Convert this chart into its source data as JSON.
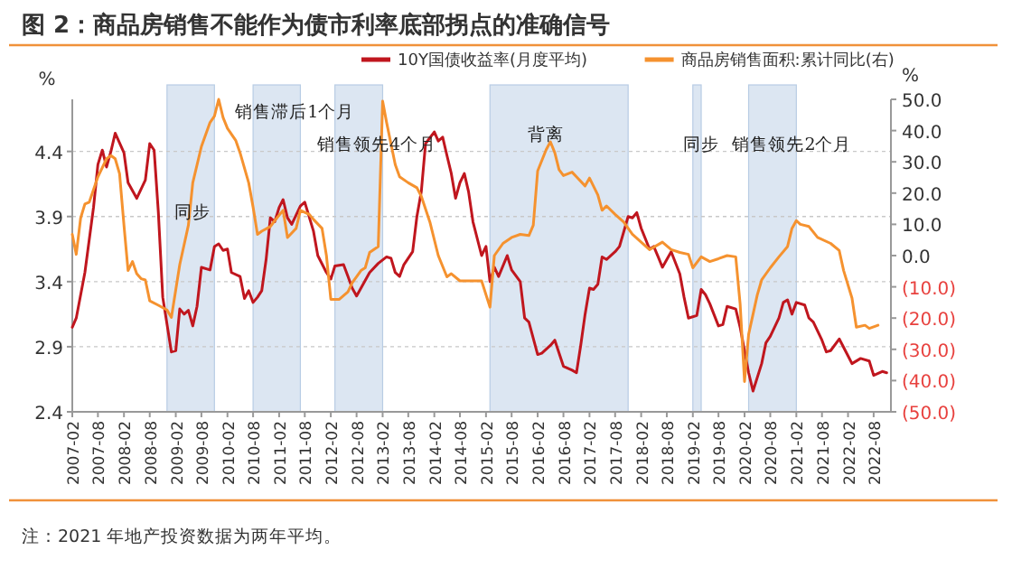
{
  "chart_data": {
    "type": "line",
    "title": "图 2：商品房销售不能作为债市利率底部拐点的准确信号",
    "ylabel": "%",
    "y2label": "%",
    "xlim": [
      "2007-02",
      "2022-12"
    ],
    "xticks": [
      "2007-02",
      "2007-08",
      "2008-02",
      "2008-08",
      "2009-02",
      "2009-08",
      "2010-02",
      "2010-08",
      "2011-02",
      "2011-08",
      "2012-02",
      "2012-08",
      "2013-02",
      "2013-08",
      "2014-02",
      "2014-08",
      "2015-02",
      "2015-08",
      "2016-02",
      "2016-08",
      "2017-02",
      "2017-08",
      "2018-02",
      "2018-08",
      "2019-02",
      "2019-08",
      "2020-02",
      "2020-08",
      "2021-02",
      "2021-08",
      "2022-02",
      "2022-08"
    ],
    "ylim": [
      2.4,
      4.8
    ],
    "yticks": [
      2.4,
      2.9,
      3.4,
      3.9,
      4.4
    ],
    "y2lim": [
      -50,
      50
    ],
    "y2ticks": [
      {
        "value": 50,
        "label": "50.0"
      },
      {
        "value": 40,
        "label": "40.0"
      },
      {
        "value": 30,
        "label": "30.0"
      },
      {
        "value": 20,
        "label": "20.0"
      },
      {
        "value": 10,
        "label": "10.0"
      },
      {
        "value": 0,
        "label": "0.0"
      },
      {
        "value": -10,
        "label": "(10.0)"
      },
      {
        "value": -20,
        "label": "(20.0)"
      },
      {
        "value": -30,
        "label": "(30.0)"
      },
      {
        "value": -40,
        "label": "(40.0)"
      },
      {
        "value": -50,
        "label": "(50.0)"
      }
    ],
    "grid": "y",
    "legend": "top",
    "marker": "none",
    "line_style": "solid",
    "bands": [
      {
        "axis": "x",
        "from": "2008-12",
        "to": "2009-11",
        "color": "#dce6f2"
      },
      {
        "axis": "x",
        "from": "2010-08",
        "to": "2011-07",
        "color": "#dce6f2",
        "label": "销售滞后1个月"
      },
      {
        "axis": "x",
        "from": "2012-03",
        "to": "2013-02",
        "color": "#dce6f2",
        "label": "销售领先4个月"
      },
      {
        "axis": "x",
        "from": "2015-03",
        "to": "2017-11",
        "color": "#dce6f2"
      },
      {
        "axis": "x",
        "from": "2019-02",
        "to": "2019-04",
        "color": "#dce6f2"
      },
      {
        "axis": "x",
        "from": "2020-03",
        "to": "2021-02",
        "color": "#dce6f2"
      }
    ],
    "annotations": [
      {
        "text": "同步",
        "x": "2009-06",
        "y": 3.95
      },
      {
        "text": "背离",
        "x": "2016-04",
        "y": 4.54
      },
      {
        "text": "同步",
        "x": "2019-04",
        "y": 4.47
      },
      {
        "text": "销售领先2个月",
        "x": "2021-01",
        "y": 4.47
      },
      "注：2021 年地产投资数据为两年平均。"
    ],
    "series": [
      {
        "name": "10Y国债收益率(月度平均)",
        "color": "#c0161e",
        "axis": "y",
        "x": [
          "2007-02",
          "2007-03",
          "2007-05",
          "2007-07",
          "2007-08",
          "2007-09",
          "2007-10",
          "2007-11",
          "2007-12",
          "2008-02",
          "2008-03",
          "2008-05",
          "2008-07",
          "2008-08",
          "2008-09",
          "2008-10",
          "2008-11",
          "2009-01",
          "2009-02",
          "2009-03",
          "2009-04",
          "2009-05",
          "2009-06",
          "2009-07",
          "2009-08",
          "2009-10",
          "2009-11",
          "2009-12",
          "2010-01",
          "2010-02",
          "2010-03",
          "2010-05",
          "2010-06",
          "2010-07",
          "2010-08",
          "2010-09",
          "2010-10",
          "2010-11",
          "2010-12",
          "2011-01",
          "2011-02",
          "2011-03",
          "2011-04",
          "2011-05",
          "2011-07",
          "2011-08",
          "2011-10",
          "2011-11",
          "2012-01",
          "2012-02",
          "2012-03",
          "2012-05",
          "2012-06",
          "2012-07",
          "2012-08",
          "2012-09",
          "2012-11",
          "2013-01",
          "2013-03",
          "2013-04",
          "2013-05",
          "2013-06",
          "2013-07",
          "2013-09",
          "2013-10",
          "2013-11",
          "2013-12",
          "2014-02",
          "2014-03",
          "2014-04",
          "2014-05",
          "2014-06",
          "2014-07",
          "2014-08",
          "2014-09",
          "2014-10",
          "2014-11",
          "2015-01",
          "2015-02",
          "2015-03",
          "2015-04",
          "2015-05",
          "2015-07",
          "2015-08",
          "2015-10",
          "2015-11",
          "2015-12",
          "2016-02",
          "2016-03",
          "2016-05",
          "2016-06",
          "2016-08",
          "2016-10",
          "2016-11",
          "2016-12",
          "2017-01",
          "2017-02",
          "2017-03",
          "2017-04",
          "2017-05",
          "2017-06",
          "2017-08",
          "2017-09",
          "2017-11",
          "2017-12",
          "2018-01",
          "2018-02",
          "2018-04",
          "2018-05",
          "2018-06",
          "2018-07",
          "2018-09",
          "2018-11",
          "2018-12",
          "2019-01",
          "2019-03",
          "2019-04",
          "2019-05",
          "2019-06",
          "2019-08",
          "2019-09",
          "2019-10",
          "2019-12",
          "2020-01",
          "2020-03",
          "2020-04",
          "2020-06",
          "2020-07",
          "2020-08",
          "2020-10",
          "2020-11",
          "2020-12",
          "2021-01",
          "2021-02",
          "2021-04",
          "2021-05",
          "2021-06",
          "2021-08",
          "2021-09",
          "2021-10",
          "2021-12",
          "2022-02",
          "2022-03",
          "2022-05",
          "2022-07",
          "2022-08",
          "2022-10",
          "2022-11"
        ],
        "values": [
          3.05,
          3.12,
          3.47,
          3.97,
          4.3,
          4.41,
          4.28,
          4.4,
          4.54,
          4.39,
          4.16,
          4.04,
          4.18,
          4.46,
          4.41,
          3.93,
          3.28,
          2.86,
          2.87,
          3.19,
          3.15,
          3.18,
          3.06,
          3.21,
          3.51,
          3.49,
          3.67,
          3.69,
          3.64,
          3.65,
          3.47,
          3.44,
          3.27,
          3.33,
          3.24,
          3.28,
          3.33,
          3.57,
          3.89,
          3.86,
          3.97,
          4.03,
          3.89,
          3.84,
          3.98,
          4.01,
          3.79,
          3.6,
          3.47,
          3.42,
          3.52,
          3.53,
          3.44,
          3.35,
          3.29,
          3.35,
          3.47,
          3.54,
          3.59,
          3.58,
          3.47,
          3.44,
          3.53,
          3.63,
          3.9,
          4.09,
          4.46,
          4.55,
          4.48,
          4.51,
          4.37,
          4.23,
          4.04,
          4.16,
          4.23,
          4.09,
          3.86,
          3.6,
          3.67,
          3.4,
          3.51,
          3.44,
          3.6,
          3.49,
          3.4,
          3.12,
          3.09,
          2.84,
          2.85,
          2.91,
          2.95,
          2.75,
          2.72,
          2.7,
          2.91,
          3.15,
          3.35,
          3.34,
          3.38,
          3.59,
          3.57,
          3.63,
          3.67,
          3.9,
          3.89,
          3.93,
          3.81,
          3.65,
          3.67,
          3.59,
          3.51,
          3.63,
          3.46,
          3.28,
          3.12,
          3.14,
          3.34,
          3.3,
          3.23,
          3.06,
          3.07,
          3.21,
          3.19,
          3.05,
          2.7,
          2.56,
          2.77,
          2.93,
          2.98,
          3.12,
          3.24,
          3.26,
          3.15,
          3.24,
          3.22,
          3.12,
          3.09,
          2.95,
          2.86,
          2.87,
          2.96,
          2.83,
          2.77,
          2.81,
          2.79,
          2.68,
          2.71,
          2.7
        ]
      },
      {
        "name": "商品房销售面积:累计同比(右)",
        "color": "#f5922f",
        "axis": "y2",
        "x": [
          "2007-02",
          "2007-03",
          "2007-04",
          "2007-05",
          "2007-06",
          "2007-08",
          "2007-10",
          "2007-11",
          "2007-12",
          "2008-01",
          "2008-02",
          "2008-03",
          "2008-04",
          "2008-05",
          "2008-06",
          "2008-07",
          "2008-08",
          "2008-10",
          "2008-12",
          "2009-01",
          "2009-03",
          "2009-05",
          "2009-06",
          "2009-08",
          "2009-10",
          "2009-11",
          "2009-12",
          "2010-01",
          "2010-02",
          "2010-04",
          "2010-05",
          "2010-07",
          "2010-08",
          "2010-09",
          "2010-10",
          "2010-12",
          "2011-01",
          "2011-03",
          "2011-04",
          "2011-06",
          "2011-07",
          "2011-09",
          "2011-10",
          "2011-12",
          "2012-01",
          "2012-02",
          "2012-04",
          "2012-06",
          "2012-07",
          "2012-09",
          "2012-10",
          "2012-11",
          "2013-01",
          "2013-02",
          "2013-03",
          "2013-05",
          "2013-06",
          "2013-08",
          "2013-10",
          "2013-11",
          "2014-01",
          "2014-03",
          "2014-05",
          "2014-06",
          "2014-08",
          "2014-11",
          "2015-01",
          "2015-03",
          "2015-04",
          "2015-06",
          "2015-08",
          "2015-10",
          "2015-12",
          "2016-01",
          "2016-02",
          "2016-04",
          "2016-05",
          "2016-06",
          "2016-07",
          "2016-08",
          "2016-10",
          "2016-11",
          "2017-01",
          "2017-02",
          "2017-04",
          "2017-05",
          "2017-06",
          "2017-08",
          "2017-10",
          "2017-12",
          "2018-02",
          "2018-04",
          "2018-06",
          "2018-07",
          "2018-09",
          "2018-11",
          "2019-01",
          "2019-02",
          "2019-04",
          "2019-06",
          "2019-08",
          "2019-10",
          "2019-12",
          "2020-01",
          "2020-02",
          "2020-03",
          "2020-05",
          "2020-06",
          "2020-08",
          "2020-10",
          "2020-12",
          "2021-01",
          "2021-02",
          "2021-03",
          "2021-05",
          "2021-07",
          "2021-10",
          "2021-12",
          "2022-01",
          "2022-03",
          "2022-04",
          "2022-06",
          "2022-07",
          "2022-09"
        ],
        "values": [
          6.8,
          0.4,
          12.0,
          16.5,
          17.1,
          25.2,
          31.0,
          32.0,
          31.0,
          26.2,
          9.7,
          -4.8,
          -1.9,
          -5.8,
          -7.4,
          -7.8,
          -14.5,
          -15.9,
          -17.4,
          -19.8,
          -2.9,
          9.7,
          23.3,
          34.9,
          42.6,
          44.6,
          50.0,
          44.2,
          40.7,
          36.8,
          32.9,
          23.3,
          15.5,
          6.8,
          7.8,
          9.3,
          11.2,
          14.5,
          5.8,
          8.7,
          14.5,
          13.2,
          11.6,
          8.7,
          0.0,
          -14.0,
          -14.0,
          -11.6,
          -8.7,
          -4.8,
          -3.9,
          1.0,
          2.9,
          49.4,
          42.6,
          29.1,
          25.2,
          23.3,
          21.7,
          19.0,
          10.7,
          0.0,
          -6.8,
          -5.8,
          -8.1,
          -8.1,
          -8.1,
          -16.5,
          0.0,
          3.9,
          5.8,
          6.8,
          6.4,
          9.7,
          27.1,
          33.9,
          36.4,
          32.9,
          27.5,
          25.6,
          26.7,
          25.2,
          22.3,
          24.8,
          19.4,
          14.5,
          15.9,
          13.2,
          10.7,
          6.8,
          4.3,
          1.9,
          3.5,
          4.3,
          1.9,
          1.0,
          0.4,
          -3.9,
          -0.4,
          -1.9,
          -1.0,
          0.0,
          -0.4,
          -15.5,
          -40.3,
          -25.2,
          -12.6,
          -7.8,
          -3.9,
          -0.4,
          2.9,
          8.7,
          11.2,
          10.0,
          9.3,
          5.8,
          3.9,
          1.6,
          -4.8,
          -13.6,
          -22.9,
          -22.3,
          -23.3,
          -22.3
        ]
      }
    ]
  }
}
